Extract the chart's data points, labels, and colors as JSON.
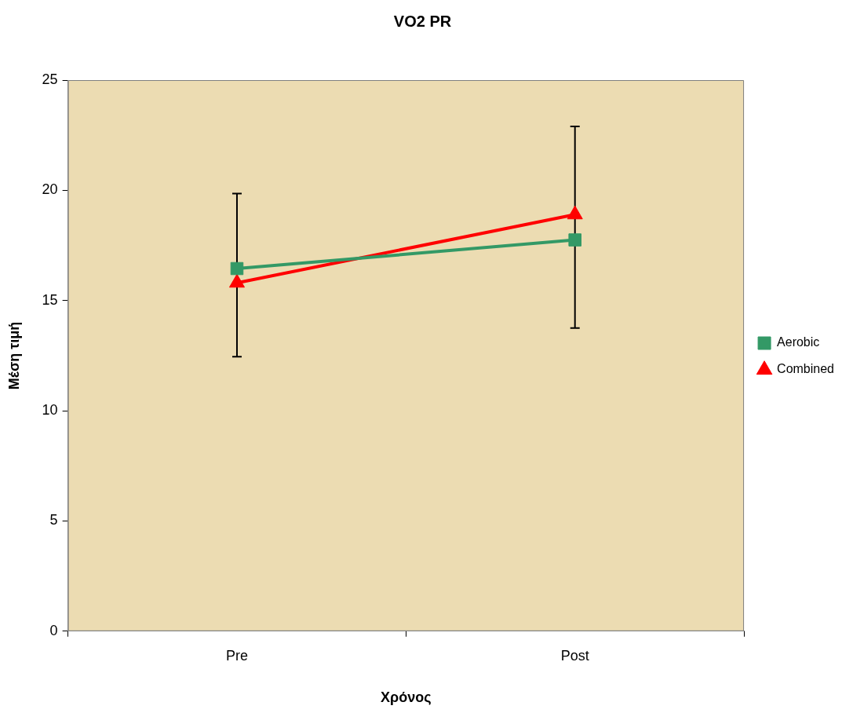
{
  "chart_data": {
    "type": "line",
    "title": "VO2 PR",
    "xlabel": "Χρόνος",
    "ylabel": "Μέση τιμή",
    "categories": [
      "Pre",
      "Post"
    ],
    "series": [
      {
        "name": "Aerobic",
        "color": "#339966",
        "values": [
          16.45,
          17.75
        ],
        "marker": "square",
        "errors": [
          [
            12.45,
            19.85
          ],
          [
            13.75,
            22.9
          ]
        ]
      },
      {
        "name": "Combined",
        "color": "#ff0000",
        "values": [
          15.8,
          18.9
        ],
        "marker": "triangle"
      }
    ],
    "ylim": [
      0,
      25
    ],
    "yticks": [
      0,
      5,
      10,
      15,
      20,
      25
    ],
    "grid": false,
    "legend": "right",
    "line_style": "solid"
  }
}
